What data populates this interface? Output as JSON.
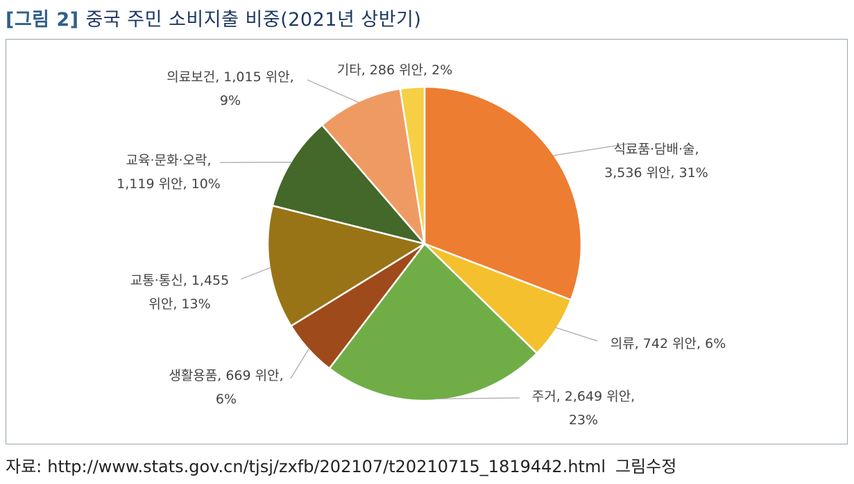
{
  "figure": {
    "number": "[그림 2]",
    "title": "중국 주민 소비지출 비중(2021년 상반기)"
  },
  "chart_data": {
    "type": "pie",
    "title": "",
    "unit": "위안",
    "start_angle_deg": 0,
    "direction": "clockwise",
    "slices": [
      {
        "name": "식료품·담배·술",
        "value": 3536,
        "percent": 31,
        "color": "#ED7D31",
        "label_lines": [
          "식료품·담배·술,",
          "3,536 위안, 31%"
        ]
      },
      {
        "name": "의류",
        "value": 742,
        "percent": 6,
        "color": "#F4C02E",
        "label_lines": [
          "의류, 742 위안, 6%"
        ]
      },
      {
        "name": "주거",
        "value": 2649,
        "percent": 23,
        "color": "#70AD47",
        "label_lines": [
          "주거, 2,649 위안,",
          "23%"
        ]
      },
      {
        "name": "생활용품",
        "value": 669,
        "percent": 6,
        "color": "#9E4A1B",
        "label_lines": [
          "생활용품, 669 위안,",
          "6%"
        ]
      },
      {
        "name": "교통·통신",
        "value": 1455,
        "percent": 13,
        "color": "#987417",
        "label_lines": [
          "교통·통신, 1,455",
          "위안, 13%"
        ]
      },
      {
        "name": "교육·문화·오락",
        "value": 1119,
        "percent": 10,
        "color": "#44672A",
        "label_lines": [
          "교육·문화·오락,",
          "1,119 위안, 10%"
        ]
      },
      {
        "name": "의료보건",
        "value": 1015,
        "percent": 9,
        "color": "#F09A63",
        "label_lines": [
          "의료보건, 1,015 위안,",
          "9%"
        ]
      },
      {
        "name": "기타",
        "value": 286,
        "percent": 2,
        "color": "#F6CF45",
        "label_lines": [
          "기타, 286 위안, 2%"
        ]
      }
    ]
  },
  "source": {
    "label": "자료:",
    "url": "http://www.stats.gov.cn/tjsj/zxfb/202107/t20210715_1819442.html",
    "note": "그림수정"
  }
}
